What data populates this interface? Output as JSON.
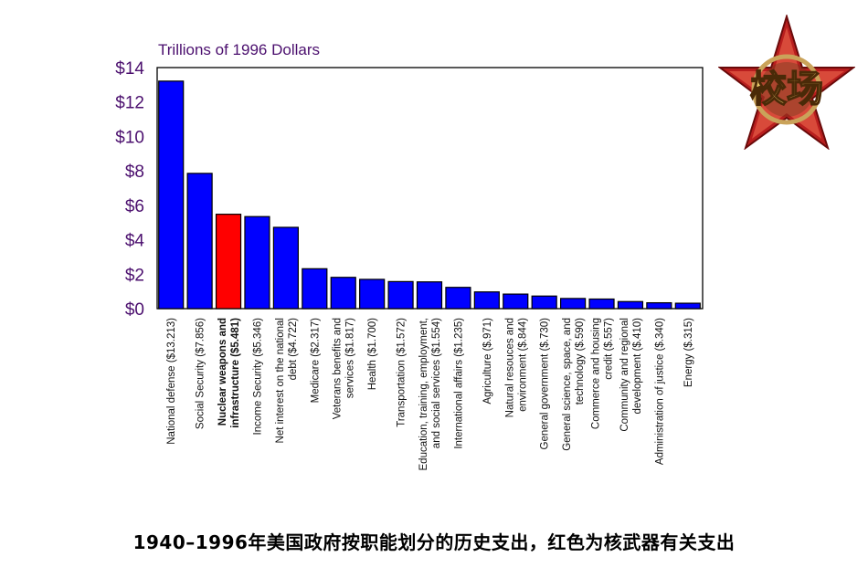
{
  "chart_data": {
    "type": "bar",
    "unit_label": "Trillions of 1996 Dollars",
    "y_tick_labels": [
      "$0",
      "$2",
      "$4",
      "$6",
      "$8",
      "$10",
      "$12",
      "$14"
    ],
    "ylim": [
      0,
      14
    ],
    "grid": false,
    "categories": [
      {
        "lines": [
          "National defense ($13.213)"
        ],
        "value": 13.213,
        "highlight": false
      },
      {
        "lines": [
          "Social Security ($7.856)"
        ],
        "value": 7.856,
        "highlight": false
      },
      {
        "lines": [
          "Nuclear weapons and",
          "infrastructure ($5.481)"
        ],
        "value": 5.481,
        "highlight": true
      },
      {
        "lines": [
          "Income Security ($5.346)"
        ],
        "value": 5.346,
        "highlight": false
      },
      {
        "lines": [
          "Net interest on the national",
          "debt ($4.722)"
        ],
        "value": 4.722,
        "highlight": false
      },
      {
        "lines": [
          "Medicare ($2.317)"
        ],
        "value": 2.317,
        "highlight": false
      },
      {
        "lines": [
          "Veterans benefits and",
          "services ($1.817)"
        ],
        "value": 1.817,
        "highlight": false
      },
      {
        "lines": [
          "Health ($1.700)"
        ],
        "value": 1.7,
        "highlight": false
      },
      {
        "lines": [
          "Transportation ($1.572)"
        ],
        "value": 1.572,
        "highlight": false
      },
      {
        "lines": [
          "Education, training, employment,",
          "and social services ($1.554)"
        ],
        "value": 1.554,
        "highlight": false
      },
      {
        "lines": [
          "International affairs ($1.235)"
        ],
        "value": 1.235,
        "highlight": false
      },
      {
        "lines": [
          "Agriculture ($.971)"
        ],
        "value": 0.971,
        "highlight": false
      },
      {
        "lines": [
          "Natural resouces and",
          "environment ($.844)"
        ],
        "value": 0.844,
        "highlight": false
      },
      {
        "lines": [
          "General government ($.730)"
        ],
        "value": 0.73,
        "highlight": false
      },
      {
        "lines": [
          "General science, space, and",
          "technology ($.590)"
        ],
        "value": 0.59,
        "highlight": false
      },
      {
        "lines": [
          "Commerce and housing",
          "credit ($.557)"
        ],
        "value": 0.557,
        "highlight": false
      },
      {
        "lines": [
          "Community and regional",
          "development ($.410)"
        ],
        "value": 0.41,
        "highlight": false
      },
      {
        "lines": [
          "Administration of justice ($.340)"
        ],
        "value": 0.34,
        "highlight": false
      },
      {
        "lines": [
          "Energy ($.315)"
        ],
        "value": 0.315,
        "highlight": false
      }
    ],
    "colors": {
      "bar": "#0000ff",
      "highlight": "#ff0000",
      "tick": "#4b0f6e"
    }
  },
  "caption": "1940–1996年美国政府按职能划分的历史支出，红色为核武器有关支出",
  "logo": {
    "icon": "star-logo-icon",
    "text": "校场"
  }
}
